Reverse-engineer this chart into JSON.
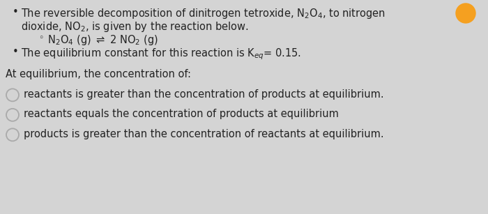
{
  "background_color": "#d4d4d4",
  "fontsize": 10.5,
  "text_color": "#222222",
  "circle_edge_color": "#aaaaaa",
  "orange_circle_color": "#f5a020",
  "bullet1_l1": "The reversible decomposition of dinitrogen tetroxide, N$_2$O$_4$, to nitrogen",
  "bullet1_l2": "dioxide, NO$_2$, is given by the reaction below.",
  "reaction": "N$_2$O$_4$ (g) $\\rightleftharpoons$ 2 NO$_2$ (g)",
  "bullet2": "The equilibrium constant for this reaction is K$_{eq}$= 0.15.",
  "question": "At equilibrium, the concentration of:",
  "option1": "reactants is greater than the concentration of products at equilibrium.",
  "option2": "reactants equals the concentration of products at equilibrium",
  "option3": "products is greater than the concentration of reactants at equilibrium."
}
